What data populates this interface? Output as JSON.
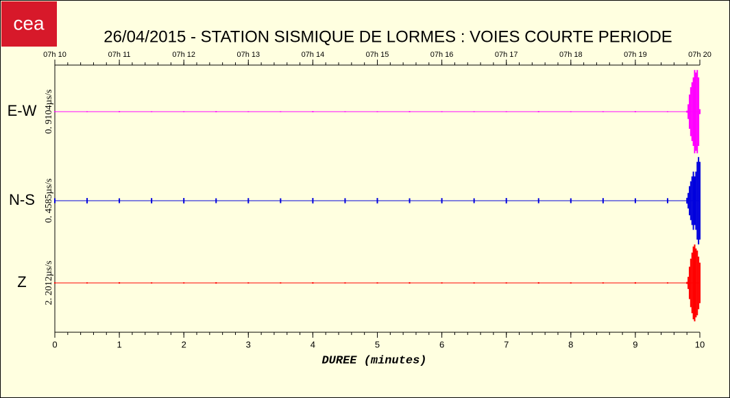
{
  "logo": "cea",
  "chart_data": {
    "type": "seismogram",
    "title": "26/04/2015  -  STATION SISMIQUE DE LORMES : VOIES COURTE PERIODE",
    "xlabel": "DUREE (minutes)",
    "xlim": [
      0,
      10
    ],
    "xticks": [
      0,
      1,
      2,
      3,
      4,
      5,
      6,
      7,
      8,
      9,
      10
    ],
    "x2ticks": [
      {
        "value": 0,
        "label": "07h 10"
      },
      {
        "value": 1,
        "label": "07h 11"
      },
      {
        "value": 2,
        "label": "07h 12"
      },
      {
        "value": 3,
        "label": "07h 13"
      },
      {
        "value": 4,
        "label": "07h 14"
      },
      {
        "value": 5,
        "label": "07h 15"
      },
      {
        "value": 6,
        "label": "07h 16"
      },
      {
        "value": 7,
        "label": "07h 17"
      },
      {
        "value": 8,
        "label": "07h 18"
      },
      {
        "value": 9,
        "label": "07h 19"
      },
      {
        "value": 10,
        "label": "07h 20"
      }
    ],
    "x": [
      0,
      0.5,
      1,
      1.5,
      2,
      2.5,
      3,
      3.5,
      4,
      4.5,
      5,
      5.5,
      6,
      6.5,
      7,
      7.5,
      8,
      8.5,
      9,
      9.5,
      9.8,
      9.82,
      9.84,
      9.86,
      9.88,
      9.9,
      9.92,
      9.94,
      9.96,
      9.98,
      10
    ],
    "series": [
      {
        "name": "E-W",
        "scale_label": "0. 9104µs/s",
        "scale": 0.9104,
        "color": "#ff00ff",
        "values": [
          0.01,
          0.01,
          0.012,
          0.01,
          0.01,
          0.012,
          0.01,
          0.01,
          0.012,
          0.01,
          0.01,
          0.012,
          0.01,
          0.01,
          0.01,
          0.012,
          0.01,
          0.01,
          0.012,
          0.01,
          0.02,
          0.15,
          0.35,
          0.5,
          0.6,
          0.7,
          0.85,
          0.8,
          0.85,
          0.7,
          0.05
        ]
      },
      {
        "name": "N-S",
        "scale_label": "0. 4585µs/s",
        "scale": 0.4585,
        "color": "#0000dd",
        "values": [
          0.025,
          0.028,
          0.025,
          0.027,
          0.028,
          0.025,
          0.027,
          0.025,
          0.028,
          0.026,
          0.028,
          0.025,
          0.027,
          0.025,
          0.028,
          0.026,
          0.025,
          0.027,
          0.025,
          0.026,
          0.03,
          0.08,
          0.15,
          0.2,
          0.25,
          0.3,
          0.25,
          0.3,
          0.4,
          0.45,
          0.4
        ]
      },
      {
        "name": "Z",
        "scale_label": "2. 2012µs/s",
        "scale": 2.2012,
        "color": "#ff0000",
        "values": [
          0.03,
          0.03,
          0.035,
          0.03,
          0.03,
          0.035,
          0.03,
          0.03,
          0.035,
          0.03,
          0.03,
          0.035,
          0.03,
          0.03,
          0.03,
          0.035,
          0.03,
          0.03,
          0.035,
          0.03,
          0.05,
          0.3,
          0.8,
          1.2,
          1.5,
          1.8,
          1.9,
          1.7,
          1.6,
          1.3,
          1.0
        ]
      }
    ]
  }
}
